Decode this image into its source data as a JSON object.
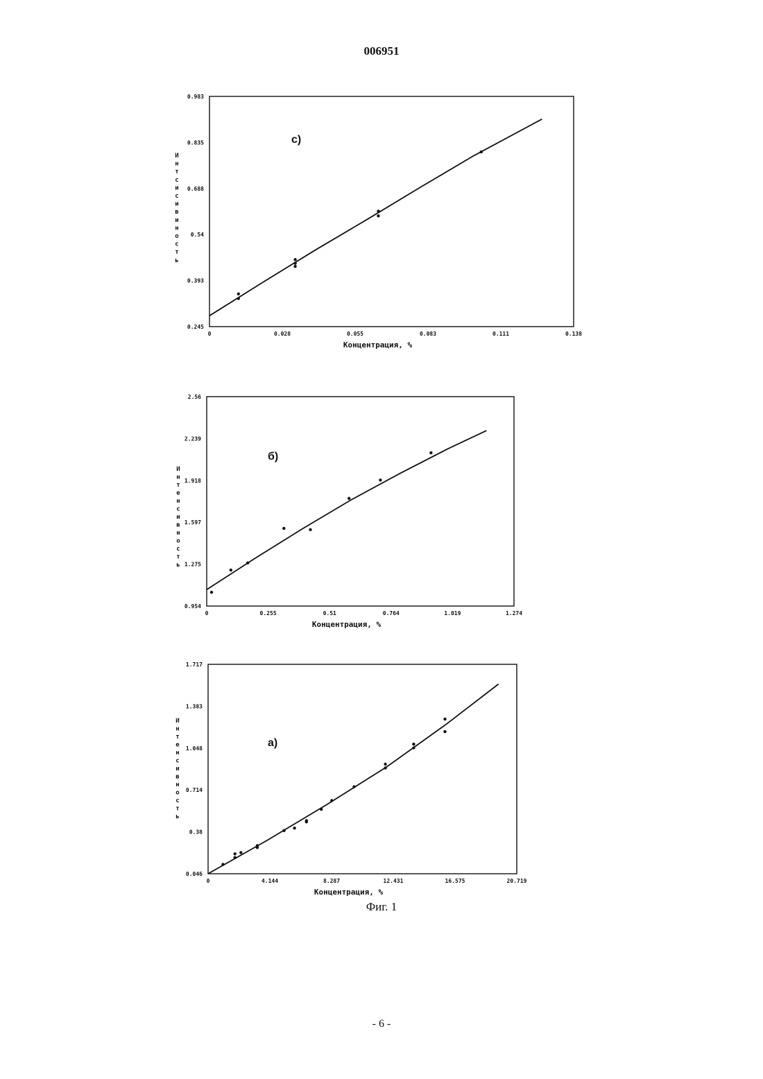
{
  "header": {
    "doc_number": "006951"
  },
  "footer": {
    "fig_caption": "Фиг. 1",
    "page_number": "- 6 -"
  },
  "chart_data": [
    {
      "type": "scatter",
      "panel_label": "с)",
      "xlabel": "Концентрация, %",
      "ylabel": "Интсисивиность",
      "xticks": [
        "0",
        "0.028",
        "0.055",
        "0.083",
        "0.111",
        "0.138"
      ],
      "yticks": [
        "0.245",
        "0.393",
        "0.54",
        "0.688",
        "0.835",
        "0.983"
      ],
      "xlim": [
        0,
        0.138
      ],
      "ylim": [
        0.245,
        0.983
      ],
      "points": [
        [
          0.011,
          0.35
        ],
        [
          0.011,
          0.335
        ],
        [
          0.0325,
          0.46
        ],
        [
          0.0325,
          0.448
        ],
        [
          0.0325,
          0.438
        ],
        [
          0.064,
          0.615
        ],
        [
          0.064,
          0.6
        ],
        [
          0.103,
          0.805
        ]
      ],
      "fit_line": [
        [
          0,
          0.28
        ],
        [
          0.02,
          0.386
        ],
        [
          0.04,
          0.49
        ],
        [
          0.06,
          0.59
        ],
        [
          0.08,
          0.692
        ],
        [
          0.1,
          0.792
        ],
        [
          0.126,
          0.91
        ]
      ]
    },
    {
      "type": "scatter",
      "panel_label": "б)",
      "xlabel": "Концентрация, %",
      "ylabel": "Интенсивность",
      "xticks": [
        "0",
        "0.255",
        "0.51",
        "0.764",
        "1.019",
        "1.274"
      ],
      "yticks": [
        "0.954",
        "1.275",
        "1.597",
        "1.918",
        "2.239",
        "2.56"
      ],
      "xlim": [
        0,
        1.274
      ],
      "ylim": [
        0.954,
        2.56
      ],
      "points": [
        [
          0.02,
          1.06
        ],
        [
          0.1,
          1.23
        ],
        [
          0.17,
          1.285
        ],
        [
          0.32,
          1.55
        ],
        [
          0.43,
          1.54
        ],
        [
          0.59,
          1.78
        ],
        [
          0.72,
          1.92
        ],
        [
          0.93,
          2.13
        ]
      ],
      "fit_line": [
        [
          0,
          1.08
        ],
        [
          0.2,
          1.32
        ],
        [
          0.4,
          1.55
        ],
        [
          0.6,
          1.77
        ],
        [
          0.8,
          1.97
        ],
        [
          1.0,
          2.16
        ],
        [
          1.16,
          2.3
        ]
      ]
    },
    {
      "type": "scatter",
      "panel_label": "а)",
      "xlabel": "Концентрация, %",
      "ylabel": "Интенсивность",
      "xticks": [
        "0",
        "4.144",
        "8.287",
        "12.431",
        "16.575",
        "20.719"
      ],
      "yticks": [
        "0.046",
        "0.38",
        "0.714",
        "1.048",
        "1.383",
        "1.717"
      ],
      "xlim": [
        0,
        20.719
      ],
      "ylim": [
        0.046,
        1.717
      ],
      "points": [
        [
          1.0,
          0.12
        ],
        [
          1.8,
          0.175
        ],
        [
          1.8,
          0.205
        ],
        [
          2.2,
          0.215
        ],
        [
          3.3,
          0.255
        ],
        [
          3.3,
          0.27
        ],
        [
          5.1,
          0.39
        ],
        [
          5.8,
          0.41
        ],
        [
          6.6,
          0.46
        ],
        [
          6.6,
          0.47
        ],
        [
          7.6,
          0.56
        ],
        [
          8.3,
          0.63
        ],
        [
          9.8,
          0.74
        ],
        [
          11.9,
          0.89
        ],
        [
          11.9,
          0.92
        ],
        [
          13.8,
          1.05
        ],
        [
          13.8,
          1.08
        ],
        [
          15.9,
          1.18
        ],
        [
          15.9,
          1.28
        ]
      ],
      "fit_line": [
        [
          0,
          0.046
        ],
        [
          4.0,
          0.315
        ],
        [
          8.0,
          0.6
        ],
        [
          12.0,
          0.9
        ],
        [
          16.0,
          1.24
        ],
        [
          19.5,
          1.56
        ]
      ]
    }
  ]
}
